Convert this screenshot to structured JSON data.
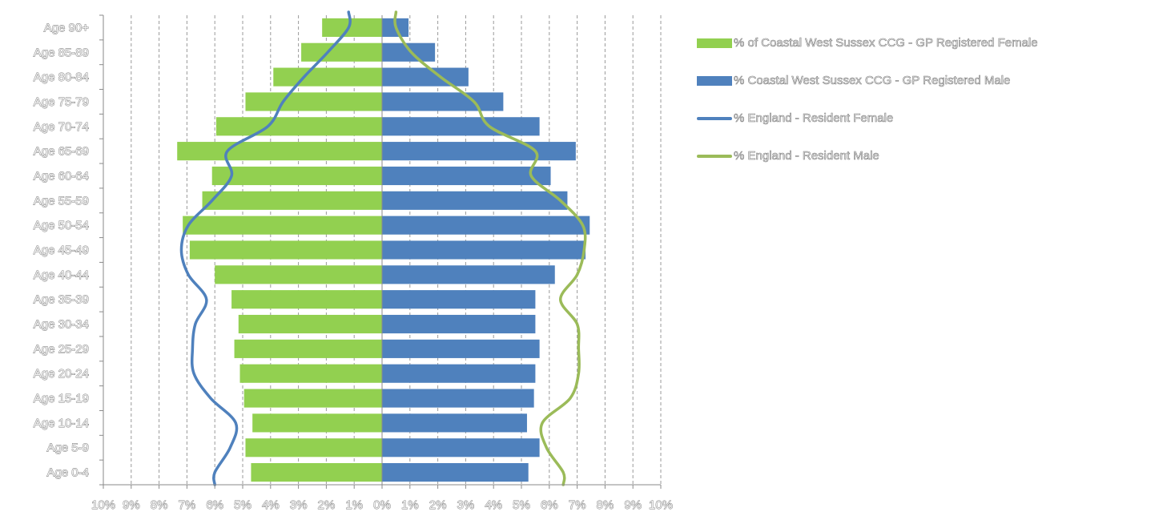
{
  "chart_data": {
    "type": "bar",
    "categories": [
      "Age 0-4",
      "Age 5-9",
      "Age 10-14",
      "Age 15-19",
      "Age 20-24",
      "Age 25-29",
      "Age 30-34",
      "Age 35-39",
      "Age 40-44",
      "Age 45-49",
      "Age 50-54",
      "Age 55-59",
      "Age 60-64",
      "Age 65-69",
      "Age 70-74",
      "Age 75-79",
      "Age 80-84",
      "Age 85-89",
      "Age 90+"
    ],
    "xlim": [
      -10,
      10
    ],
    "x_tick_labels": [
      "10%",
      "9%",
      "8%",
      "7%",
      "6%",
      "5%",
      "4%",
      "3%",
      "2%",
      "1%",
      "0%",
      "1%",
      "2%",
      "3%",
      "4%",
      "5%",
      "6%",
      "7%",
      "8%",
      "9%",
      "10%"
    ],
    "grid": "vertical dashed",
    "legend_position": "right",
    "series": [
      {
        "name": "% of Coastal West Sussex CCG - GP Registered Female",
        "type": "bar",
        "side": "left",
        "color": "#92d050",
        "values": [
          4.7,
          4.9,
          4.65,
          4.95,
          5.1,
          5.3,
          5.15,
          5.4,
          6.0,
          6.9,
          7.15,
          6.45,
          6.1,
          7.35,
          5.95,
          4.9,
          3.9,
          2.9,
          2.15
        ]
      },
      {
        "name": "% Coastal West Sussex CCG - GP Registered Male",
        "type": "bar",
        "side": "right",
        "color": "#4f81bd",
        "values": [
          5.25,
          5.65,
          5.2,
          5.45,
          5.5,
          5.65,
          5.5,
          5.5,
          6.2,
          7.3,
          7.45,
          6.65,
          6.05,
          6.95,
          5.65,
          4.35,
          3.1,
          1.9,
          0.95
        ]
      },
      {
        "name": "% England - Resident Female",
        "type": "line",
        "side": "left",
        "color": "#4f81bd",
        "values": [
          6.0,
          5.45,
          5.25,
          6.15,
          6.75,
          6.8,
          6.7,
          6.3,
          6.95,
          7.2,
          6.95,
          6.1,
          5.4,
          5.55,
          4.1,
          3.55,
          2.8,
          1.95,
          1.2
        ]
      },
      {
        "name": "% England - Resident Male",
        "type": "line",
        "side": "right",
        "color": "#9bbb59",
        "values": [
          6.5,
          5.9,
          5.75,
          6.75,
          7.05,
          7.05,
          7.0,
          6.4,
          7.0,
          7.25,
          7.2,
          6.4,
          5.35,
          5.5,
          3.85,
          3.3,
          2.1,
          1.05,
          0.5
        ]
      }
    ]
  }
}
